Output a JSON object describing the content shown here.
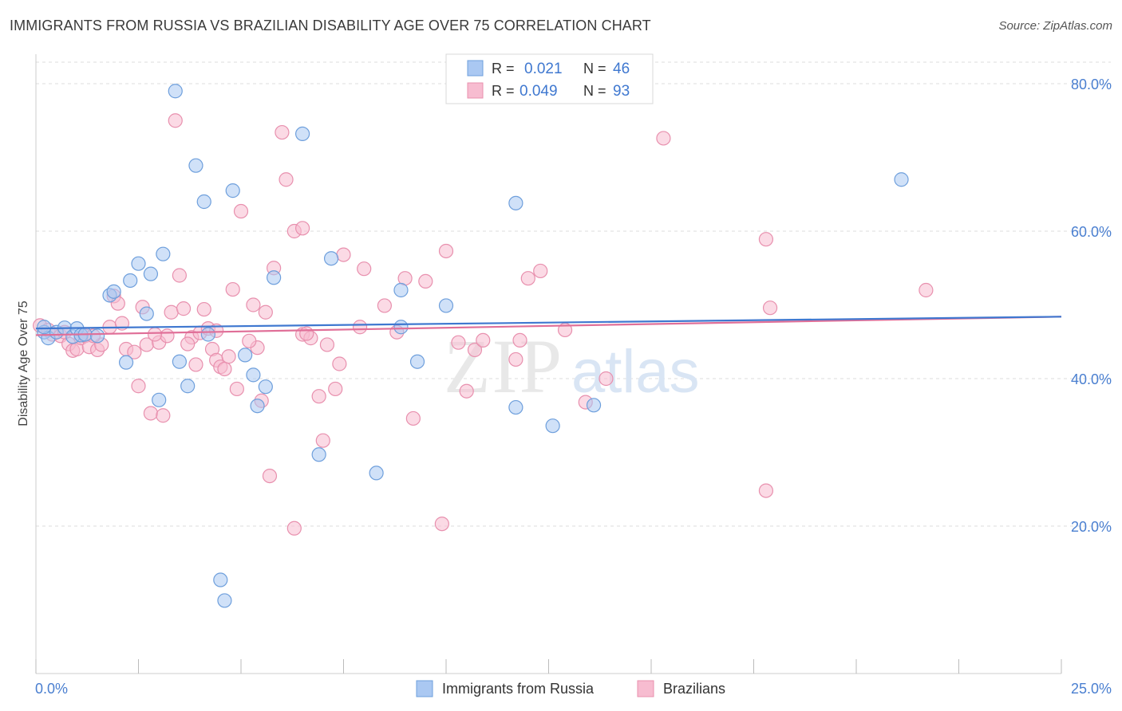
{
  "header": {
    "title": "IMMIGRANTS FROM RUSSIA VS BRAZILIAN DISABILITY AGE OVER 75 CORRELATION CHART",
    "source": "Source: ZipAtlas.com"
  },
  "watermark": {
    "zip": "ZIP",
    "atlas": "atlas"
  },
  "colors": {
    "russia_fill": "#aac8f2",
    "russia_stroke": "#6e9fdc",
    "russia_line": "#3f78d0",
    "brazil_fill": "#f7bcd0",
    "brazil_stroke": "#e890ae",
    "brazil_line": "#e06f98",
    "tick_label": "#4a7fd0",
    "grid": "#dddddd"
  },
  "legend": {
    "rows": [
      {
        "r_label": "R =",
        "r_value": "0.021",
        "n_label": "N =",
        "n_value": "46"
      },
      {
        "r_label": "R =",
        "r_value": "0.049",
        "n_label": "N =",
        "n_value": "93"
      }
    ]
  },
  "chart_data": {
    "type": "scatter",
    "title": "IMMIGRANTS FROM RUSSIA VS BRAZILIAN DISABILITY AGE OVER 75 CORRELATION CHART",
    "xlabel": "",
    "ylabel": "Disability Age Over 75",
    "xlim": [
      0,
      25
    ],
    "ylim": [
      0,
      84
    ],
    "x_tick_labels": [
      {
        "value": 0,
        "label": "0.0%"
      },
      {
        "value": 25,
        "label": "25.0%"
      }
    ],
    "y_tick_labels": [
      {
        "value": 20,
        "label": "20.0%"
      },
      {
        "value": 40,
        "label": "40.0%"
      },
      {
        "value": 60,
        "label": "60.0%"
      },
      {
        "value": 80,
        "label": "80.0%"
      }
    ],
    "y_gridlines": [
      20,
      40,
      60,
      80
    ],
    "series": [
      {
        "name": "Immigrants from Russia",
        "r": 0.021,
        "n": 46,
        "trend": {
          "x0": 0,
          "y0": 46.8,
          "x1": 25,
          "y1": 48.4
        },
        "points": [
          [
            0.2,
            46.3
          ],
          [
            0.3,
            45.5
          ],
          [
            0.5,
            46.3
          ],
          [
            0.7,
            46.9
          ],
          [
            0.9,
            45.7
          ],
          [
            1.0,
            46.8
          ],
          [
            1.1,
            45.9
          ],
          [
            1.2,
            46.0
          ],
          [
            1.8,
            51.3
          ],
          [
            1.9,
            51.8
          ],
          [
            2.2,
            42.2
          ],
          [
            2.3,
            53.3
          ],
          [
            2.5,
            55.6
          ],
          [
            2.7,
            48.8
          ],
          [
            2.8,
            54.2
          ],
          [
            3.0,
            37.1
          ],
          [
            3.1,
            56.9
          ],
          [
            3.4,
            79.0
          ],
          [
            3.5,
            42.3
          ],
          [
            3.7,
            39.0
          ],
          [
            3.9,
            68.9
          ],
          [
            4.1,
            64.0
          ],
          [
            4.2,
            46.0
          ],
          [
            4.5,
            12.7
          ],
          [
            4.6,
            9.9
          ],
          [
            4.8,
            65.5
          ],
          [
            5.1,
            43.2
          ],
          [
            5.3,
            40.5
          ],
          [
            5.4,
            36.3
          ],
          [
            5.6,
            38.9
          ],
          [
            5.8,
            53.7
          ],
          [
            6.5,
            73.2
          ],
          [
            6.9,
            29.7
          ],
          [
            7.2,
            56.3
          ],
          [
            8.3,
            27.2
          ],
          [
            8.9,
            47.0
          ],
          [
            8.9,
            52.0
          ],
          [
            9.3,
            42.3
          ],
          [
            10.0,
            49.9
          ],
          [
            11.7,
            36.1
          ],
          [
            11.7,
            63.8
          ],
          [
            12.6,
            33.6
          ],
          [
            13.6,
            36.4
          ],
          [
            21.1,
            67.0
          ],
          [
            0.2,
            47.0
          ],
          [
            1.5,
            45.8
          ]
        ]
      },
      {
        "name": "Brazilians",
        "r": 0.049,
        "n": 93,
        "trend": {
          "x0": 0,
          "y0": 45.9,
          "x1": 25,
          "y1": 48.4
        },
        "points": [
          [
            0.1,
            47.2
          ],
          [
            0.3,
            46.6
          ],
          [
            0.4,
            46.0
          ],
          [
            0.6,
            45.8
          ],
          [
            0.8,
            44.7
          ],
          [
            0.9,
            43.8
          ],
          [
            1.0,
            44.0
          ],
          [
            1.1,
            45.5
          ],
          [
            1.2,
            45.8
          ],
          [
            1.3,
            44.3
          ],
          [
            1.5,
            43.9
          ],
          [
            1.6,
            44.6
          ],
          [
            1.8,
            47.0
          ],
          [
            1.9,
            51.2
          ],
          [
            2.0,
            50.2
          ],
          [
            2.1,
            47.5
          ],
          [
            2.2,
            44.0
          ],
          [
            2.4,
            43.6
          ],
          [
            2.5,
            39.0
          ],
          [
            2.6,
            49.7
          ],
          [
            2.7,
            44.6
          ],
          [
            2.8,
            35.3
          ],
          [
            3.0,
            44.9
          ],
          [
            3.1,
            35.0
          ],
          [
            3.2,
            45.8
          ],
          [
            3.3,
            49.0
          ],
          [
            3.4,
            75.0
          ],
          [
            3.5,
            54.0
          ],
          [
            3.6,
            49.5
          ],
          [
            3.8,
            45.6
          ],
          [
            3.9,
            41.9
          ],
          [
            4.0,
            46.2
          ],
          [
            4.1,
            49.4
          ],
          [
            4.2,
            46.8
          ],
          [
            4.3,
            44.0
          ],
          [
            4.4,
            42.5
          ],
          [
            4.5,
            41.6
          ],
          [
            4.6,
            41.3
          ],
          [
            4.7,
            43.0
          ],
          [
            4.8,
            52.1
          ],
          [
            4.9,
            38.6
          ],
          [
            5.0,
            62.7
          ],
          [
            5.3,
            50.0
          ],
          [
            5.4,
            44.2
          ],
          [
            5.5,
            37.0
          ],
          [
            5.6,
            49.0
          ],
          [
            5.7,
            26.8
          ],
          [
            5.8,
            55.0
          ],
          [
            6.0,
            73.4
          ],
          [
            6.1,
            67.0
          ],
          [
            6.3,
            19.7
          ],
          [
            6.3,
            60.0
          ],
          [
            6.5,
            60.4
          ],
          [
            6.5,
            46.0
          ],
          [
            6.7,
            45.5
          ],
          [
            6.9,
            37.6
          ],
          [
            7.0,
            31.6
          ],
          [
            7.1,
            44.6
          ],
          [
            7.3,
            38.6
          ],
          [
            7.4,
            42.0
          ],
          [
            7.5,
            56.8
          ],
          [
            8.0,
            54.9
          ],
          [
            8.5,
            49.9
          ],
          [
            9.0,
            53.6
          ],
          [
            9.2,
            34.6
          ],
          [
            9.5,
            53.2
          ],
          [
            9.9,
            20.3
          ],
          [
            10.0,
            57.3
          ],
          [
            10.5,
            38.3
          ],
          [
            10.7,
            43.9
          ],
          [
            10.9,
            45.2
          ],
          [
            11.7,
            42.6
          ],
          [
            11.8,
            45.2
          ],
          [
            12.0,
            53.6
          ],
          [
            12.3,
            54.6
          ],
          [
            13.4,
            36.8
          ],
          [
            13.9,
            40.0
          ],
          [
            15.3,
            72.6
          ],
          [
            17.8,
            58.9
          ],
          [
            17.8,
            24.8
          ],
          [
            17.9,
            49.6
          ],
          [
            21.7,
            52.0
          ],
          [
            1.4,
            45.8
          ],
          [
            2.9,
            46.0
          ],
          [
            4.4,
            46.5
          ],
          [
            6.6,
            46.1
          ],
          [
            8.8,
            46.3
          ],
          [
            0.7,
            46.3
          ],
          [
            3.7,
            44.7
          ],
          [
            5.2,
            45.1
          ],
          [
            7.9,
            47.0
          ],
          [
            10.3,
            44.9
          ],
          [
            12.9,
            46.6
          ]
        ]
      }
    ],
    "legend_position": "top-center",
    "grid": true
  }
}
